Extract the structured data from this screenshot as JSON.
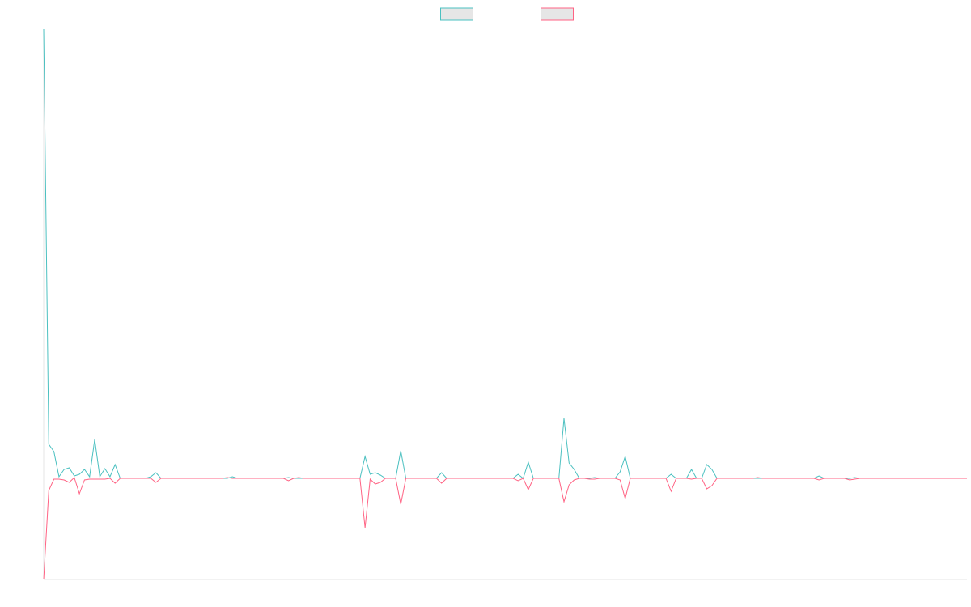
{
  "chart_data": {
    "type": "line",
    "legend": "top",
    "ylim": [
      -125,
      555
    ],
    "series": [
      {
        "color": "#4bc0c0",
        "values": [
          555,
          42,
          33,
          2,
          11,
          13,
          3,
          5,
          11,
          2,
          48,
          2,
          12,
          2,
          17,
          0,
          0,
          0,
          0,
          0,
          0,
          2,
          7,
          0,
          0,
          0,
          0,
          0,
          0,
          0,
          0,
          0,
          0,
          0,
          0,
          0,
          0,
          2,
          0,
          0,
          0,
          0,
          0,
          0,
          0,
          0,
          0,
          0,
          1,
          0,
          0,
          0,
          0,
          0,
          0,
          0,
          0,
          0,
          0,
          0,
          0,
          0,
          0,
          27,
          5,
          7,
          4,
          0,
          0,
          0,
          34,
          0,
          0,
          0,
          0,
          0,
          0,
          0,
          7,
          0,
          0,
          0,
          0,
          0,
          0,
          0,
          0,
          0,
          0,
          0,
          0,
          0,
          0,
          5,
          0,
          20,
          0,
          0,
          0,
          0,
          0,
          0,
          74,
          19,
          11,
          0,
          0,
          0,
          1,
          0,
          0,
          0,
          0,
          8,
          27,
          0,
          0,
          0,
          0,
          0,
          0,
          0,
          0,
          5,
          0,
          0,
          0,
          11,
          0,
          0,
          17,
          11,
          0,
          0,
          0,
          0,
          0,
          0,
          0,
          0,
          0,
          0,
          0,
          0,
          0,
          0,
          0,
          0,
          0,
          0,
          0,
          0,
          3,
          0,
          0,
          0,
          0,
          0,
          0,
          1,
          0,
          0,
          0,
          0,
          0,
          0,
          0,
          0,
          0,
          0,
          0,
          0,
          0,
          0,
          0,
          0,
          0,
          0,
          0,
          0,
          0,
          0
        ]
      },
      {
        "color": "#ff6384",
        "values": [
          -125,
          -15,
          -1,
          -1,
          -2,
          -5,
          1,
          -19,
          -2,
          -1,
          -1,
          -1,
          -1,
          0,
          -6,
          0,
          0,
          0,
          0,
          0,
          0,
          0,
          -5,
          0,
          0,
          0,
          0,
          0,
          0,
          0,
          0,
          0,
          0,
          0,
          0,
          0,
          1,
          0,
          0,
          0,
          0,
          0,
          0,
          0,
          0,
          0,
          0,
          0,
          -3,
          0,
          1,
          0,
          0,
          0,
          0,
          0,
          0,
          0,
          0,
          0,
          0,
          0,
          0,
          -61,
          -1,
          -7,
          -5,
          0,
          0,
          0,
          -32,
          0,
          0,
          0,
          0,
          0,
          0,
          0,
          -6,
          0,
          0,
          0,
          0,
          0,
          0,
          0,
          0,
          0,
          0,
          0,
          0,
          0,
          0,
          -3,
          0,
          -14,
          0,
          0,
          0,
          0,
          0,
          0,
          -29,
          -8,
          -2,
          0,
          0,
          -1,
          -1,
          0,
          0,
          0,
          0,
          -2,
          -25,
          0,
          0,
          0,
          0,
          0,
          0,
          0,
          0,
          -16,
          0,
          0,
          0,
          -1,
          0,
          0,
          -13,
          -9,
          0,
          0,
          0,
          0,
          0,
          0,
          0,
          0,
          1,
          0,
          0,
          0,
          0,
          0,
          0,
          0,
          0,
          0,
          0,
          0,
          -2,
          0,
          0,
          0,
          0,
          0,
          -2,
          -1,
          0,
          0,
          0,
          0,
          0,
          0,
          0,
          0,
          0,
          0,
          0,
          0,
          0,
          0,
          0,
          0,
          0,
          0,
          0,
          0,
          0,
          0
        ]
      }
    ]
  }
}
